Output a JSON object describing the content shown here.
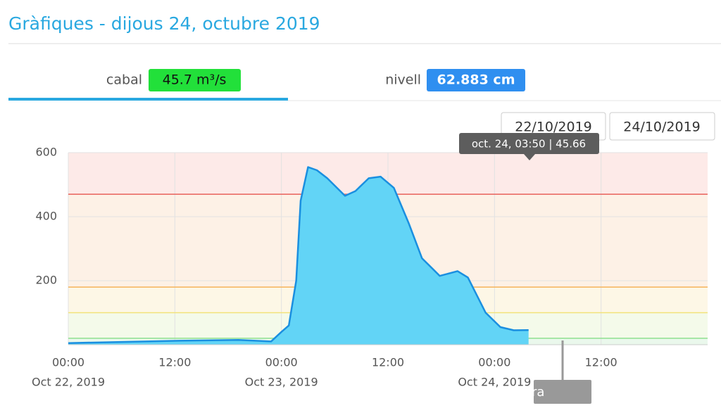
{
  "header": {
    "title": "Gràfiques - dijous 24, octubre 2019"
  },
  "tabs": [
    {
      "label": "cabal",
      "badge": "45.7 m³/s",
      "badge_color": "#22e03a"
    },
    {
      "label": "nivell",
      "badge": "62.883 cm",
      "badge_color": "#2f8ff0"
    }
  ],
  "date_range": {
    "from": "22/10/2019",
    "to": "24/10/2019"
  },
  "tooltip": "oct. 24, 03:50 | 45.66",
  "chart_data": {
    "type": "area",
    "x": [
      "2019-10-22T00:00",
      "2019-10-22T12:00",
      "2019-10-22T19:10",
      "2019-10-22T22:50",
      "2019-10-23T00:00",
      "2019-10-23T00:50",
      "2019-10-23T01:40",
      "2019-10-23T02:10",
      "2019-10-23T03:00",
      "2019-10-23T04:00",
      "2019-10-23T05:10",
      "2019-10-23T07:10",
      "2019-10-23T08:20",
      "2019-10-23T09:50",
      "2019-10-23T11:10",
      "2019-10-23T12:40",
      "2019-10-23T14:20",
      "2019-10-23T15:50",
      "2019-10-23T17:50",
      "2019-10-23T19:50",
      "2019-10-23T21:00",
      "2019-10-23T23:00",
      "2019-10-24T00:40",
      "2019-10-24T02:10",
      "2019-10-24T03:50"
    ],
    "series": [
      {
        "name": "cabal",
        "color": "#1a8fe0",
        "fill": "#62d4f6",
        "values": [
          5,
          12,
          15,
          10,
          40,
          60,
          200,
          450,
          555,
          545,
          520,
          465,
          480,
          520,
          525,
          490,
          380,
          270,
          215,
          230,
          210,
          100,
          55,
          45,
          45.66
        ]
      }
    ],
    "xlim": [
      "2019-10-22T00:00",
      "2019-10-25T00:00"
    ],
    "xticks": [
      {
        "value": "2019-10-22T00:00",
        "label": "00:00",
        "date_label": "Oct 22, 2019"
      },
      {
        "value": "2019-10-22T12:00",
        "label": "12:00"
      },
      {
        "value": "2019-10-23T00:00",
        "label": "00:00",
        "date_label": "Oct 23, 2019"
      },
      {
        "value": "2019-10-23T12:00",
        "label": "12:00"
      },
      {
        "value": "2019-10-24T00:00",
        "label": "00:00",
        "date_label": "Oct 24, 2019"
      },
      {
        "value": "2019-10-24T12:00",
        "label": "12:00"
      }
    ],
    "ylim": [
      0,
      600
    ],
    "yticks": [
      200,
      400,
      600
    ],
    "grid": true,
    "thresholds": [
      {
        "value": 20,
        "color": "#8ee08e",
        "band": "#eaf8ec"
      },
      {
        "value": 100,
        "color": "#f2e27a",
        "band": "#f4faea"
      },
      {
        "value": 180,
        "color": "#f5b35a",
        "band": "#fdf7e6"
      },
      {
        "value": 470,
        "color": "#e8605a",
        "band": "#fdf1e6"
      }
    ],
    "top_band": "#fdeae8",
    "now_marker": {
      "x": "2019-10-24T07:40",
      "label": "Ara"
    }
  }
}
